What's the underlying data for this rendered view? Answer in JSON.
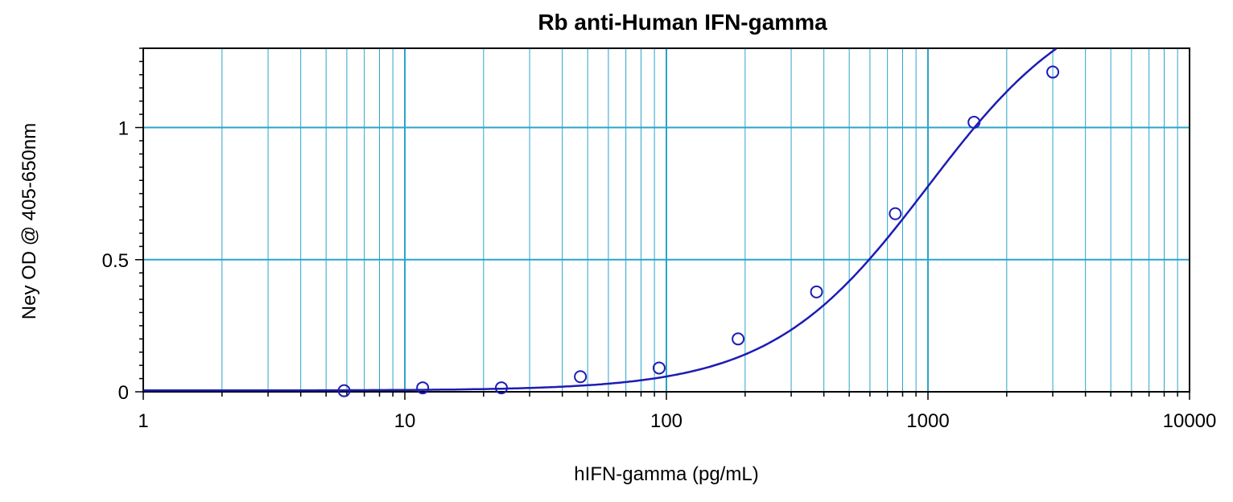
{
  "chart_data": {
    "type": "scatter",
    "title": "Rb anti-Human IFN-gamma",
    "xlabel": "hIFN-gamma (pg/mL)",
    "ylabel": "Ney OD @ 405-650nm",
    "x_scale": "log",
    "y_scale": "linear",
    "xlim": [
      1,
      10000
    ],
    "ylim": [
      0,
      1.3
    ],
    "x_ticks": [
      1,
      10,
      100,
      1000,
      10000
    ],
    "x_tick_labels": [
      "1",
      "10",
      "100",
      "1000",
      "10000"
    ],
    "y_ticks": [
      0,
      0.5,
      1
    ],
    "y_tick_labels": [
      "0",
      "0.5",
      "1"
    ],
    "grid": true,
    "series": [
      {
        "x": [
          5.86,
          11.7,
          23.4,
          46.9,
          93.8,
          188,
          375,
          750,
          1500,
          3000
        ],
        "y": [
          0.004,
          0.015,
          0.015,
          0.057,
          0.09,
          0.2,
          0.378,
          0.674,
          1.02,
          1.21
        ]
      }
    ],
    "fit": {
      "type": "4PL",
      "bottom": 0.005,
      "top": 1.55,
      "ec50": 1000,
      "hill": 1.45
    },
    "colors": {
      "series": "#1c1cb4",
      "grid": "#2aa4cc",
      "axis": "#000000"
    }
  }
}
